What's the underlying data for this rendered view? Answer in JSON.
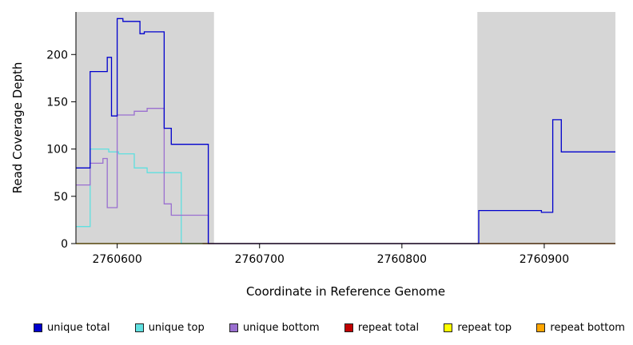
{
  "chart_data": {
    "type": "line",
    "title": "",
    "xlabel": "Coordinate in Reference Genome",
    "ylabel": "Read Coverage Depth",
    "xlim": [
      2760571,
      2760950
    ],
    "ylim": [
      0,
      245
    ],
    "xticks": [
      2760600,
      2760700,
      2760800,
      2760900
    ],
    "yticks": [
      0,
      50,
      100,
      150,
      200
    ],
    "grid": false,
    "legend_position": "bottom",
    "figure_bg": "#ffffff",
    "shaded_region_color": "#d6d6d6",
    "shaded_regions": [
      {
        "x0": 2760571,
        "x1": 2760668
      },
      {
        "x0": 2760853,
        "x1": 2760950
      }
    ],
    "series": [
      {
        "name": "repeat top",
        "color": "#ffff00",
        "points": [
          [
            2760571,
            0
          ],
          [
            2760950,
            0
          ]
        ]
      },
      {
        "name": "repeat bottom",
        "color": "#ffa500",
        "points": [
          [
            2760571,
            0
          ],
          [
            2760668,
            0
          ]
        ]
      },
      {
        "name": "unique top",
        "color": "#5fe0e0",
        "points": [
          [
            2760571,
            18
          ],
          [
            2760581,
            18
          ],
          [
            2760581,
            100
          ],
          [
            2760594,
            100
          ],
          [
            2760594,
            97
          ],
          [
            2760601,
            97
          ],
          [
            2760601,
            95
          ],
          [
            2760612,
            95
          ],
          [
            2760612,
            80
          ],
          [
            2760621,
            80
          ],
          [
            2760621,
            75
          ],
          [
            2760645,
            75
          ],
          [
            2760645,
            0
          ],
          [
            2760854,
            0
          ]
        ]
      },
      {
        "name": "unique bottom",
        "color": "#9a6fd0",
        "points": [
          [
            2760571,
            62
          ],
          [
            2760581,
            62
          ],
          [
            2760581,
            85
          ],
          [
            2760590,
            85
          ],
          [
            2760590,
            90
          ],
          [
            2760593,
            90
          ],
          [
            2760593,
            38
          ],
          [
            2760600,
            38
          ],
          [
            2760600,
            136
          ],
          [
            2760612,
            136
          ],
          [
            2760612,
            140
          ],
          [
            2760621,
            140
          ],
          [
            2760621,
            143
          ],
          [
            2760633,
            143
          ],
          [
            2760633,
            42
          ],
          [
            2760638,
            42
          ],
          [
            2760638,
            30
          ],
          [
            2760664,
            30
          ],
          [
            2760664,
            0
          ],
          [
            2760854,
            0
          ]
        ]
      },
      {
        "name": "repeat total",
        "color": "#c00000",
        "points": [
          [
            2760660,
            0
          ],
          [
            2760950,
            0
          ]
        ]
      },
      {
        "name": "unique total",
        "color": "#0000cd",
        "points": [
          [
            2760571,
            80
          ],
          [
            2760581,
            80
          ],
          [
            2760581,
            182
          ],
          [
            2760593,
            182
          ],
          [
            2760593,
            197
          ],
          [
            2760596,
            197
          ],
          [
            2760596,
            135
          ],
          [
            2760600,
            135
          ],
          [
            2760600,
            238
          ],
          [
            2760604,
            238
          ],
          [
            2760604,
            235
          ],
          [
            2760616,
            235
          ],
          [
            2760616,
            222
          ],
          [
            2760619,
            222
          ],
          [
            2760619,
            224
          ],
          [
            2760633,
            224
          ],
          [
            2760633,
            122
          ],
          [
            2760638,
            122
          ],
          [
            2760638,
            105
          ],
          [
            2760664,
            105
          ],
          [
            2760664,
            0
          ],
          [
            2760854,
            0
          ],
          [
            2760854,
            35
          ],
          [
            2760898,
            35
          ],
          [
            2760898,
            33
          ],
          [
            2760906,
            33
          ],
          [
            2760906,
            131
          ],
          [
            2760912,
            131
          ],
          [
            2760912,
            97
          ],
          [
            2760950,
            97
          ]
        ]
      }
    ],
    "legend": [
      {
        "label": "unique total",
        "color": "#0000cd"
      },
      {
        "label": "unique top",
        "color": "#5fe0e0"
      },
      {
        "label": "unique bottom",
        "color": "#9a6fd0"
      },
      {
        "label": "repeat total",
        "color": "#c00000"
      },
      {
        "label": "repeat top",
        "color": "#ffff00"
      },
      {
        "label": "repeat bottom",
        "color": "#ffa500"
      }
    ]
  }
}
